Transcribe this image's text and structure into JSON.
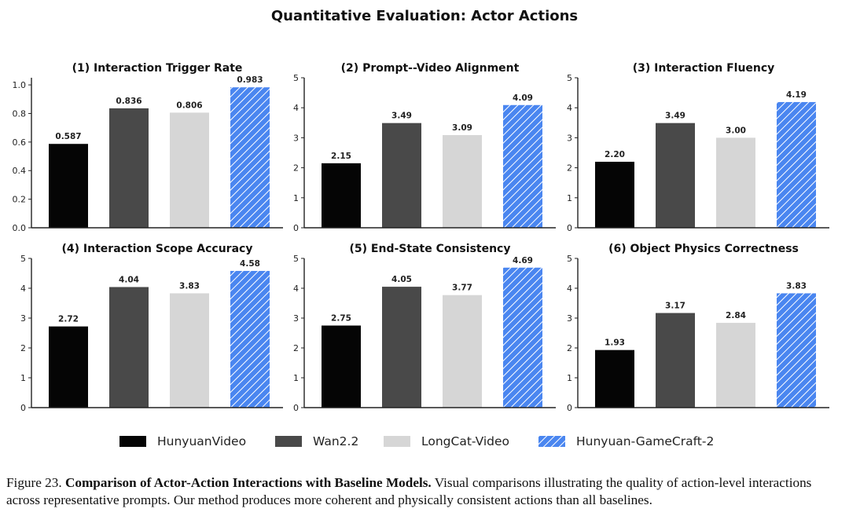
{
  "chart_data": {
    "type": "bar",
    "title": "Quantitative Evaluation: Actor Actions",
    "legend": {
      "placement": "bottom-center",
      "entries": [
        "HunyuanVideo",
        "Wan2.2",
        "LongCat-Video",
        "Hunyuan-GameCraft-2"
      ]
    },
    "series_colors": [
      "#050505",
      "#494949",
      "#d6d6d6",
      "#4a86f0"
    ],
    "hatched_series": "Hunyuan-GameCraft-2",
    "categories": [
      "HunyuanVideo",
      "Wan2.2",
      "LongCat-Video",
      "Hunyuan-GameCraft-2"
    ],
    "panels": [
      {
        "title": "(1) Interaction Trigger Rate",
        "values": [
          0.587,
          0.836,
          0.806,
          0.983
        ],
        "labels": [
          "0.587",
          "0.836",
          "0.806",
          "0.983"
        ],
        "ylim": [
          0,
          1.05
        ],
        "yticks": [
          "0.0",
          "0.2",
          "0.4",
          "0.6",
          "0.8",
          "1.0"
        ],
        "ytick_values": [
          0,
          0.2,
          0.4,
          0.6,
          0.8,
          1.0
        ]
      },
      {
        "title": "(2) Prompt--Video Alignment",
        "values": [
          2.15,
          3.49,
          3.09,
          4.09
        ],
        "labels": [
          "2.15",
          "3.49",
          "3.09",
          "4.09"
        ],
        "ylim": [
          0,
          5
        ],
        "yticks": [
          "0",
          "1",
          "2",
          "3",
          "4",
          "5"
        ],
        "ytick_values": [
          0,
          1,
          2,
          3,
          4,
          5
        ]
      },
      {
        "title": "(3) Interaction Fluency",
        "values": [
          2.2,
          3.49,
          3.0,
          4.19
        ],
        "labels": [
          "2.20",
          "3.49",
          "3.00",
          "4.19"
        ],
        "ylim": [
          0,
          5
        ],
        "yticks": [
          "0",
          "1",
          "2",
          "3",
          "4",
          "5"
        ],
        "ytick_values": [
          0,
          1,
          2,
          3,
          4,
          5
        ]
      },
      {
        "title": "(4) Interaction Scope Accuracy",
        "values": [
          2.72,
          4.04,
          3.83,
          4.58
        ],
        "labels": [
          "2.72",
          "4.04",
          "3.83",
          "4.58"
        ],
        "ylim": [
          0,
          5
        ],
        "yticks": [
          "0",
          "1",
          "2",
          "3",
          "4",
          "5"
        ],
        "ytick_values": [
          0,
          1,
          2,
          3,
          4,
          5
        ]
      },
      {
        "title": "(5) End-State Consistency",
        "values": [
          2.75,
          4.05,
          3.77,
          4.69
        ],
        "labels": [
          "2.75",
          "4.05",
          "3.77",
          "4.69"
        ],
        "ylim": [
          0,
          5
        ],
        "yticks": [
          "0",
          "1",
          "2",
          "3",
          "4",
          "5"
        ],
        "ytick_values": [
          0,
          1,
          2,
          3,
          4,
          5
        ]
      },
      {
        "title": "(6) Object Physics Correctness",
        "values": [
          1.93,
          3.17,
          2.84,
          3.83
        ],
        "labels": [
          "1.93",
          "3.17",
          "2.84",
          "3.83"
        ],
        "ylim": [
          0,
          5
        ],
        "yticks": [
          "0",
          "1",
          "2",
          "3",
          "4",
          "5"
        ],
        "ytick_values": [
          0,
          1,
          2,
          3,
          4,
          5
        ]
      }
    ],
    "grid": false
  },
  "caption": {
    "label": "Figure 23.",
    "bold": "Comparison of Actor-Action Interactions with Baseline Models.",
    "text": "Visual comparisons illustrating the quality of action-level interactions across representative prompts. Our method produces more coherent and physically consistent actions than all baselines."
  }
}
